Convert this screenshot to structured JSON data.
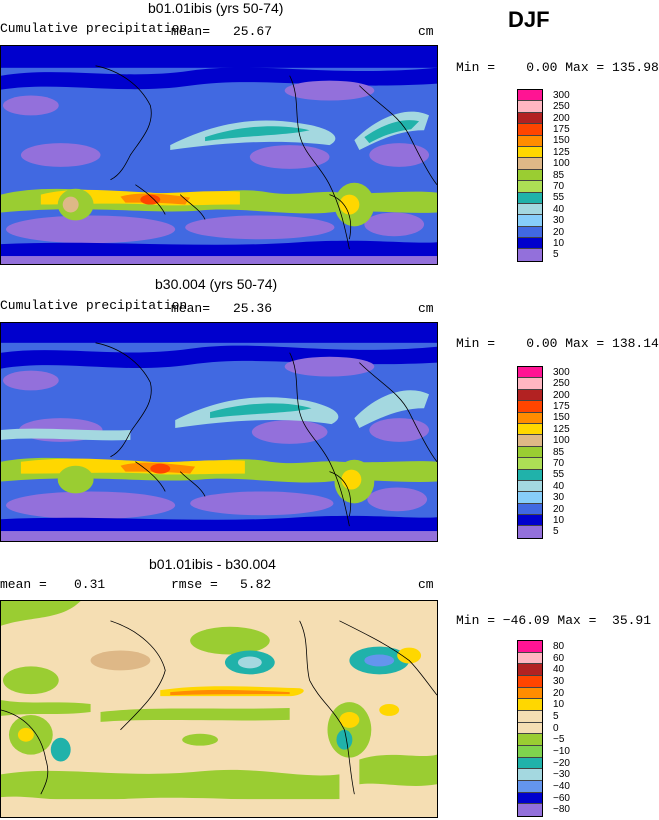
{
  "season": "DJF",
  "panels": [
    {
      "title": "b01.01ibis (yrs 50-74)",
      "field": "Cumulative precipitation",
      "stat_label": "mean=",
      "stat_value": "25.67",
      "units": "cm",
      "minmax": "Min =    0.00 Max = 135.98",
      "kind": "abs",
      "levels": [
        "300",
        "250",
        "200",
        "175",
        "150",
        "125",
        "100",
        "85",
        "70",
        "55",
        "40",
        "30",
        "20",
        "10",
        "5"
      ],
      "colors": [
        "#ff1493",
        "#ffb6c1",
        "#b22222",
        "#ff4500",
        "#ff8c00",
        "#ffd700",
        "#deb887",
        "#9acd32",
        "#addf55",
        "#20b2aa",
        "#a4d8e0",
        "#87cefa",
        "#4169e1",
        "#0000cd",
        "#9370db"
      ]
    },
    {
      "title": "b30.004 (yrs 50-74)",
      "field": "Cumulative precipitation",
      "stat_label": "mean=",
      "stat_value": "25.36",
      "units": "cm",
      "minmax": "Min =    0.00 Max = 138.14",
      "kind": "abs",
      "levels": [
        "300",
        "250",
        "200",
        "175",
        "150",
        "125",
        "100",
        "85",
        "70",
        "55",
        "40",
        "30",
        "20",
        "10",
        "5"
      ],
      "colors": [
        "#ff1493",
        "#ffb6c1",
        "#b22222",
        "#ff4500",
        "#ff8c00",
        "#ffd700",
        "#deb887",
        "#9acd32",
        "#addf55",
        "#20b2aa",
        "#a4d8e0",
        "#87cefa",
        "#4169e1",
        "#0000cd",
        "#9370db"
      ]
    },
    {
      "title": "b01.01ibis - b30.004",
      "stat_label": "mean =",
      "stat_value": "0.31",
      "rmse_label": "rmse =",
      "rmse_value": "5.82",
      "units": "cm",
      "minmax": "Min = −46.09 Max =  35.91",
      "kind": "diff",
      "levels": [
        "80",
        "60",
        "40",
        "30",
        "20",
        "10",
        "5",
        "0",
        "−5",
        "−10",
        "−20",
        "−30",
        "−40",
        "−60",
        "−80"
      ],
      "colors": [
        "#ff1493",
        "#ffb6c1",
        "#b22222",
        "#ff4500",
        "#ff8c00",
        "#ffd700",
        "#f5deb3",
        "#f5deb3",
        "#9acd32",
        "#7fd34e",
        "#20b2aa",
        "#a4d8e0",
        "#6495ed",
        "#0000cd",
        "#9370db"
      ]
    }
  ]
}
